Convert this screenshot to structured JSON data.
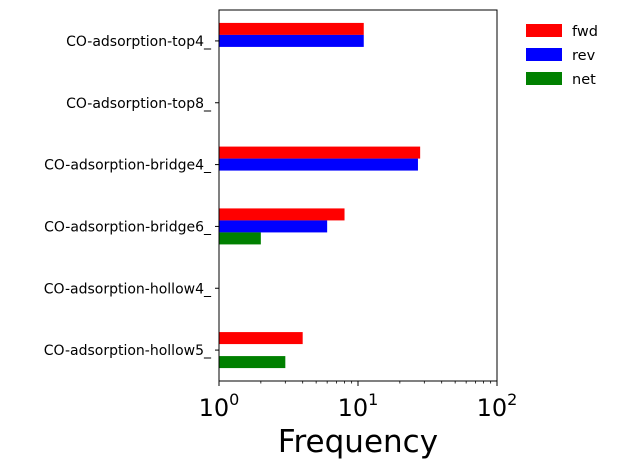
{
  "chart_data": {
    "type": "bar",
    "orientation": "horizontal",
    "x_scale": "log",
    "xlim": [
      1,
      100
    ],
    "xlabel": "Frequency",
    "ylabel": "",
    "title": "",
    "grid": false,
    "legend_position": "top-right, outside plot",
    "categories": [
      "CO-adsorption-top4_",
      "CO-adsorption-top8_",
      "CO-adsorption-bridge4_",
      "CO-adsorption-bridge6_",
      "CO-adsorption-hollow4_",
      "CO-adsorption-hollow5_"
    ],
    "x_ticks": [
      {
        "base": "10",
        "exp": "0",
        "value": 1
      },
      {
        "base": "10",
        "exp": "1",
        "value": 10
      },
      {
        "base": "10",
        "exp": "2",
        "value": 100
      }
    ],
    "series": [
      {
        "name": "fwd",
        "color": "#ff0000",
        "values": [
          11,
          0,
          28,
          8,
          0,
          4
        ]
      },
      {
        "name": "rev",
        "color": "#0000ff",
        "values": [
          11,
          0,
          27,
          6,
          0,
          0
        ]
      },
      {
        "name": "net",
        "color": "#008000",
        "values": [
          0,
          0,
          0,
          2,
          0,
          3
        ]
      }
    ]
  }
}
